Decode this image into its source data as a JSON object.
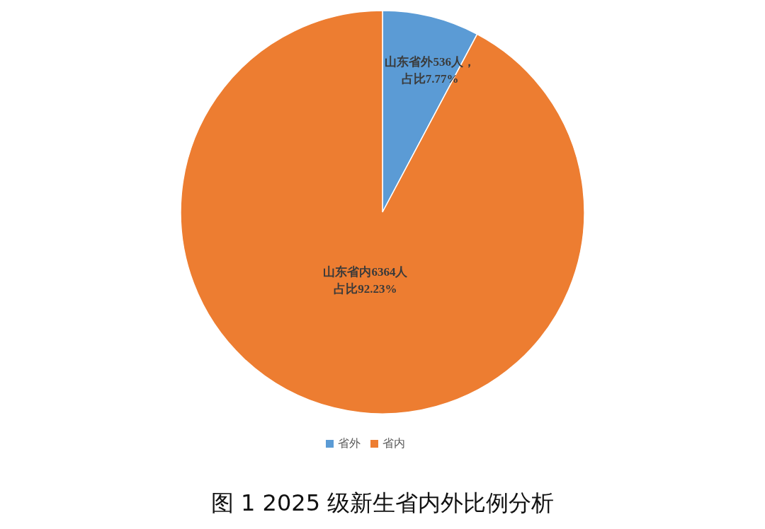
{
  "chart_data": {
    "type": "pie",
    "title": "图 1 2025 级新生省内外比例分析",
    "categories": [
      "省外",
      "省内"
    ],
    "values": [
      536,
      6364
    ],
    "colors": [
      "#5b9bd5",
      "#ed7d31"
    ],
    "value_labels": [
      "山东省外536人，占比7.77%",
      "山东省内6364人占比92.23%"
    ],
    "legend": "bottom"
  }
}
